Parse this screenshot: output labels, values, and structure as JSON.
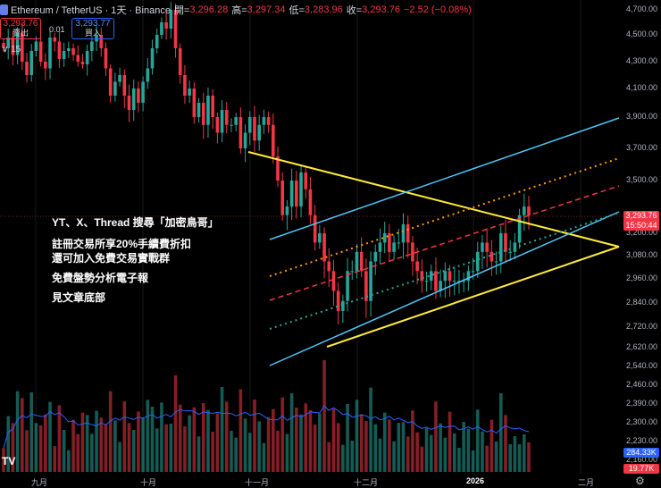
{
  "header": {
    "title": "Ethereum / TetherUS · 1天 · Binance",
    "open_label": "開=",
    "open": "3,296.28",
    "high_label": "高=",
    "high": "3,297.34",
    "low_label": "低=",
    "low": "3,283.96",
    "close_label": "收=",
    "close": "3,293.76",
    "change": "−2.52 (−0.08%)"
  },
  "trade": {
    "sell_price": "3,293.76",
    "sell_label": "賣出",
    "spread": "0.01",
    "buy_price": "3,293.77",
    "buy_label": "買入"
  },
  "indicators_toggle": "∨ 15",
  "promo": {
    "line1": "YT、X、Thread 搜尋「加密鳥哥」",
    "line2": "註冊交易所享20%手續費折扣",
    "line3": "還可加入免費交易實戰群",
    "line4": "免費盤勢分析電子報",
    "line5": "見文章底部"
  },
  "price_axis": [
    "4,700.00",
    "4,500.00",
    "4,300.00",
    "4,100.00",
    "3,900.00",
    "3,700.00",
    "3,500.00",
    "3,200.00",
    "3,080.00",
    "2,960.00",
    "2,840.00",
    "2,720.00",
    "2,620.00",
    "2,540.00",
    "2,460.00",
    "2,390.00",
    "2,300.00",
    "2,230.00",
    "2,160.00"
  ],
  "time_axis": [
    "九月",
    "十月",
    "十一月",
    "十二月",
    "2026",
    "二月"
  ],
  "last_price": {
    "price": "3,293.76",
    "countdown": "15:50:44"
  },
  "volume_tags": {
    "volume": "284.33K",
    "ma": "19.77K"
  },
  "logo": "TV",
  "settings_icon": "⚙",
  "chart_data": {
    "type": "candlestick",
    "symbol": "Ethereum / TetherUS",
    "interval": "1天",
    "exchange": "Binance",
    "last_close": 3293.76,
    "price_range": [
      2100,
      4800
    ],
    "approximate_closes": [
      4400,
      4480,
      4350,
      4520,
      4300,
      4200,
      4380,
      4450,
      4300,
      4250,
      4480,
      4450,
      4320,
      4380,
      4400,
      4350,
      4300,
      4280,
      4380,
      4450,
      4500,
      4400,
      4250,
      4050,
      4150,
      4200,
      4050,
      3950,
      4100,
      4000,
      4150,
      4250,
      4400,
      4500,
      4600,
      4550,
      4700,
      4400,
      4200,
      4050,
      4100,
      3900,
      4000,
      3850,
      4050,
      3900,
      3800,
      3950,
      3850,
      3850,
      3900,
      3700,
      3800,
      3900,
      3750,
      3850,
      3900,
      3850,
      3650,
      3500,
      3300,
      3350,
      3500,
      3350,
      3550,
      3450,
      3300,
      3150,
      3200,
      3050,
      3000,
      2900,
      2800,
      2850,
      3000,
      3000,
      3100,
      3000,
      2850,
      3050,
      3100,
      3150,
      3200,
      3100,
      3150,
      3150,
      3250,
      3150,
      3050,
      3000,
      2950,
      2950,
      3000,
      2900,
      2950,
      3000,
      2950,
      2950,
      2950,
      2950,
      3000,
      3000,
      3100,
      3150,
      3100,
      3050,
      3050,
      3200,
      3100,
      3100,
      3150,
      3300,
      3350,
      3300
    ]
  }
}
